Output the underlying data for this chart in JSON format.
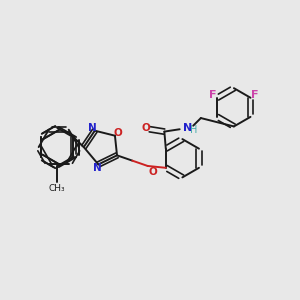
{
  "bg_color": "#e8e8e8",
  "bond_color": "#1a1a1a",
  "N_color": "#2222cc",
  "O_color": "#cc2222",
  "F_color": "#cc44aa",
  "NH_color": "#44aaaa",
  "figsize": [
    3.0,
    3.0
  ],
  "dpi": 100,
  "xlim": [
    0,
    10
  ],
  "ylim": [
    0,
    10
  ]
}
